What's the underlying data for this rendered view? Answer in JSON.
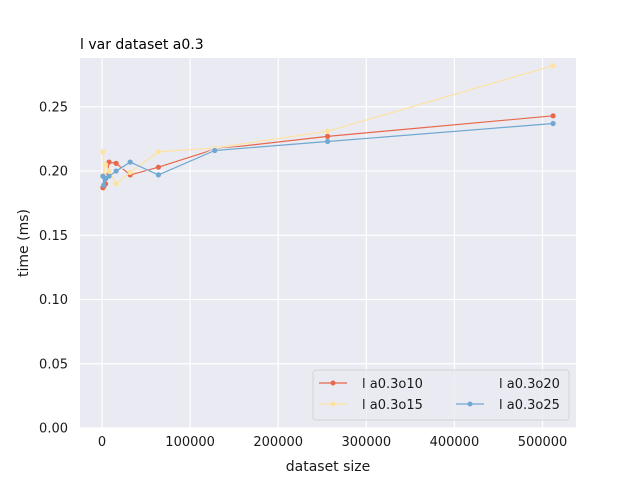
{
  "chart_data": {
    "type": "line",
    "title": "l var dataset a0.3",
    "xlabel": "dataset size",
    "ylabel": "time (ms)",
    "xlim": [
      -25000,
      538000
    ],
    "ylim": [
      0,
      0.288
    ],
    "grid": true,
    "legend_position": "lower-right",
    "x_ticks": [
      0,
      100000,
      200000,
      300000,
      400000,
      500000
    ],
    "x_tick_labels": [
      "0",
      "100000",
      "200000",
      "300000",
      "400000",
      "500000"
    ],
    "y_ticks": [
      0,
      0.05,
      0.1,
      0.15,
      0.2,
      0.25
    ],
    "y_tick_labels": [
      "0.00",
      "0.05",
      "0.10",
      "0.15",
      "0.20",
      "0.25"
    ],
    "x": [
      1000,
      2000,
      4000,
      8000,
      16000,
      32000,
      64000,
      128000,
      256000,
      512000
    ],
    "series": [
      {
        "name": "l a0.3o10",
        "color": "#e8684a",
        "values": [
          0.187,
          0.188,
          0.19,
          0.207,
          0.206,
          0.197,
          0.203,
          0.217,
          0.227,
          0.243
        ]
      },
      {
        "name": "l a0.3o15",
        "color": "#fde3a1",
        "values": [
          0.215,
          0.197,
          0.205,
          0.2,
          0.19,
          0.199,
          0.215,
          0.218,
          0.231,
          0.282
        ]
      },
      {
        "name": "l a0.3o20",
        "color": "#e6ebf5",
        "values": [
          0.19,
          0.195,
          0.194,
          0.196,
          0.199,
          0.206,
          0.197,
          0.217,
          0.223,
          0.237
        ]
      },
      {
        "name": "l a0.3o25",
        "color": "#6fa8d0",
        "values": [
          0.196,
          0.189,
          0.194,
          0.196,
          0.2,
          0.207,
          0.197,
          0.216,
          0.223,
          0.237
        ]
      }
    ]
  }
}
